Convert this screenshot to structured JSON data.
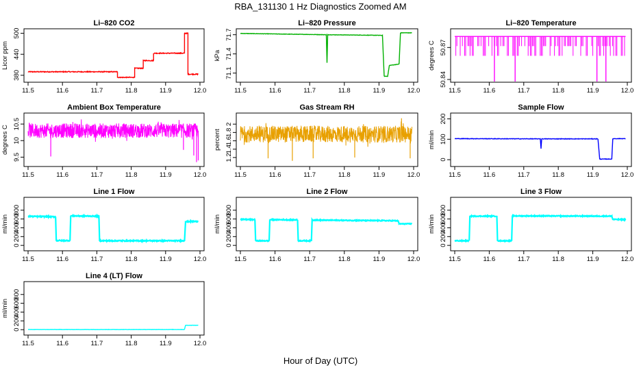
{
  "figure": {
    "title": "RBA_131130  1 Hz Diagnostics Zoomed AM",
    "xlabel": "Hour of Day (UTC)"
  },
  "chart_data": [
    {
      "id": "co2",
      "type": "line",
      "title": "Li–820 CO2",
      "ylabel": "Licor ppm",
      "color": "#ff0000",
      "xlim": [
        11.5,
        12.0
      ],
      "ylim": [
        368,
        505
      ],
      "xticks": [
        11.5,
        11.6,
        11.7,
        11.8,
        11.9,
        12.0
      ],
      "yticks": [
        380,
        440,
        500
      ],
      "x": [
        11.5,
        11.76,
        11.76,
        11.81,
        11.81,
        11.835,
        11.835,
        11.865,
        11.865,
        11.955,
        11.955,
        11.965,
        11.965,
        11.995
      ],
      "y": [
        390,
        390,
        374,
        374,
        400,
        400,
        422,
        422,
        443,
        443,
        500,
        500,
        383,
        383
      ],
      "noise": 1.2
    },
    {
      "id": "pressure",
      "type": "line",
      "title": "Li–820 Pressure",
      "ylabel": "kPa",
      "color": "#00b000",
      "xlim": [
        11.5,
        12.0
      ],
      "ylim": [
        71.0,
        71.75
      ],
      "xticks": [
        11.5,
        11.6,
        11.7,
        11.8,
        11.9,
        12.0
      ],
      "yticks": [
        71.1,
        71.4,
        71.7
      ],
      "x": [
        11.5,
        11.748,
        11.75,
        11.752,
        11.91,
        11.915,
        11.925,
        11.93,
        11.958,
        11.962,
        11.985,
        11.995
      ],
      "y": [
        71.72,
        71.7,
        71.26,
        71.7,
        71.69,
        71.05,
        71.05,
        71.22,
        71.24,
        71.73,
        71.73,
        71.73
      ],
      "noise": 0.003
    },
    {
      "id": "licor_temp",
      "type": "spikes",
      "title": "Li–820 Temperature",
      "ylabel": "degrees C",
      "color": "#ff00ff",
      "xlim": [
        11.5,
        12.0
      ],
      "ylim": [
        50.84,
        50.885
      ],
      "xticks": [
        11.5,
        11.6,
        11.7,
        11.8,
        11.9,
        12.0
      ],
      "yticks": [
        50.84,
        50.87
      ],
      "base": 50.8804,
      "levels": [
        50.8804,
        50.8713,
        50.8622
      ],
      "down_spikes_x": [
        11.615,
        11.675,
        11.912,
        11.938
      ],
      "spike_density": 0.55
    },
    {
      "id": "box_temp",
      "type": "noisy",
      "title": "Ambient Box Temperature",
      "ylabel": "degrees C",
      "color": "#ff00ff",
      "xlim": [
        11.5,
        12.0
      ],
      "ylim": [
        9.3,
        10.75
      ],
      "xticks": [
        11.5,
        11.6,
        11.7,
        11.8,
        11.9,
        12.0
      ],
      "yticks": [
        9.5,
        10.0,
        10.5
      ],
      "mean": 10.3,
      "band": 0.22,
      "dips": [
        [
          11.566,
          9.52
        ],
        [
          11.952,
          9.72
        ],
        [
          11.982,
          9.55
        ],
        [
          11.99,
          9.35
        ],
        [
          11.995,
          9.4
        ]
      ]
    },
    {
      "id": "rh",
      "type": "noisy",
      "title": "Gas Stream RH",
      "ylabel": "percent",
      "color": "#e8a000",
      "xlim": [
        11.5,
        12.0
      ],
      "ylim": [
        1.05,
        2.2
      ],
      "xticks": [
        11.5,
        11.6,
        11.7,
        11.8,
        11.9,
        12.0
      ],
      "yticks": [
        1.2,
        1.4,
        1.6,
        1.8,
        2.0
      ],
      "mean": 1.76,
      "band": 0.2,
      "dips": [
        [
          11.58,
          1.18
        ],
        [
          11.65,
          1.12
        ],
        [
          11.71,
          1.18
        ],
        [
          11.83,
          1.2
        ],
        [
          11.99,
          1.18
        ],
        [
          11.965,
          2.14
        ]
      ]
    },
    {
      "id": "sample_flow",
      "type": "line",
      "title": "Sample Flow",
      "ylabel": "ml/min",
      "color": "#0000ff",
      "xlim": [
        11.5,
        12.0
      ],
      "ylim": [
        -20,
        215
      ],
      "xticks": [
        11.5,
        11.6,
        11.7,
        11.8,
        11.9,
        12.0
      ],
      "yticks": [
        0,
        100,
        200
      ],
      "x": [
        11.5,
        11.748,
        11.75,
        11.752,
        11.915,
        11.92,
        11.955,
        11.958,
        11.995
      ],
      "y": [
        103,
        102,
        55,
        102,
        102,
        3,
        3,
        103,
        103
      ],
      "noise": 1.2
    },
    {
      "id": "line1",
      "type": "line",
      "title": "Line 1 Flow",
      "ylabel": "ml/min",
      "color": "#00ffff",
      "xlim": [
        11.5,
        12.0
      ],
      "ylim": [
        -60,
        1030
      ],
      "xticks": [
        11.5,
        11.6,
        11.7,
        11.8,
        11.9,
        12.0
      ],
      "yticks": [
        0,
        200,
        400,
        600,
        800
      ],
      "x": [
        11.5,
        11.58,
        11.582,
        11.622,
        11.624,
        11.706,
        11.708,
        11.955,
        11.958,
        11.995
      ],
      "y": [
        660,
        650,
        110,
        110,
        670,
        665,
        105,
        105,
        540,
        545
      ],
      "noise": 12
    },
    {
      "id": "line2",
      "type": "line",
      "title": "Line 2 Flow",
      "ylabel": "ml/min",
      "color": "#00ffff",
      "xlim": [
        11.5,
        12.0
      ],
      "ylim": [
        -60,
        1030
      ],
      "xticks": [
        11.5,
        11.6,
        11.7,
        11.8,
        11.9,
        12.0
      ],
      "yticks": [
        0,
        200,
        400,
        600,
        800
      ],
      "x": [
        11.5,
        11.542,
        11.544,
        11.583,
        11.585,
        11.665,
        11.667,
        11.705,
        11.707,
        11.955,
        11.958,
        11.995
      ],
      "y": [
        590,
        585,
        105,
        105,
        585,
        580,
        105,
        105,
        575,
        560,
        490,
        490
      ],
      "noise": 10
    },
    {
      "id": "line3",
      "type": "line",
      "title": "Line 3 Flow",
      "ylabel": "ml/min",
      "color": "#00ffff",
      "xlim": [
        11.5,
        12.0
      ],
      "ylim": [
        -60,
        1030
      ],
      "xticks": [
        11.5,
        11.6,
        11.7,
        11.8,
        11.9,
        12.0
      ],
      "yticks": [
        0,
        200,
        400,
        600,
        800
      ],
      "x": [
        11.5,
        11.542,
        11.544,
        11.622,
        11.624,
        11.665,
        11.667,
        11.955,
        11.958,
        11.995
      ],
      "y": [
        105,
        105,
        665,
        665,
        105,
        105,
        670,
        665,
        590,
        585
      ],
      "noise": 10
    },
    {
      "id": "line4",
      "type": "line",
      "title": "Line 4 (LT) Flow",
      "ylabel": "ml/min",
      "color": "#00ffff",
      "xlim": [
        11.5,
        12.0
      ],
      "ylim": [
        -60,
        1030
      ],
      "xticks": [
        11.5,
        11.6,
        11.7,
        11.8,
        11.9,
        12.0
      ],
      "yticks": [
        0,
        200,
        400,
        600,
        800
      ],
      "x": [
        11.5,
        11.955,
        11.958,
        11.995
      ],
      "y": [
        5,
        5,
        100,
        100
      ],
      "noise": 3
    }
  ]
}
